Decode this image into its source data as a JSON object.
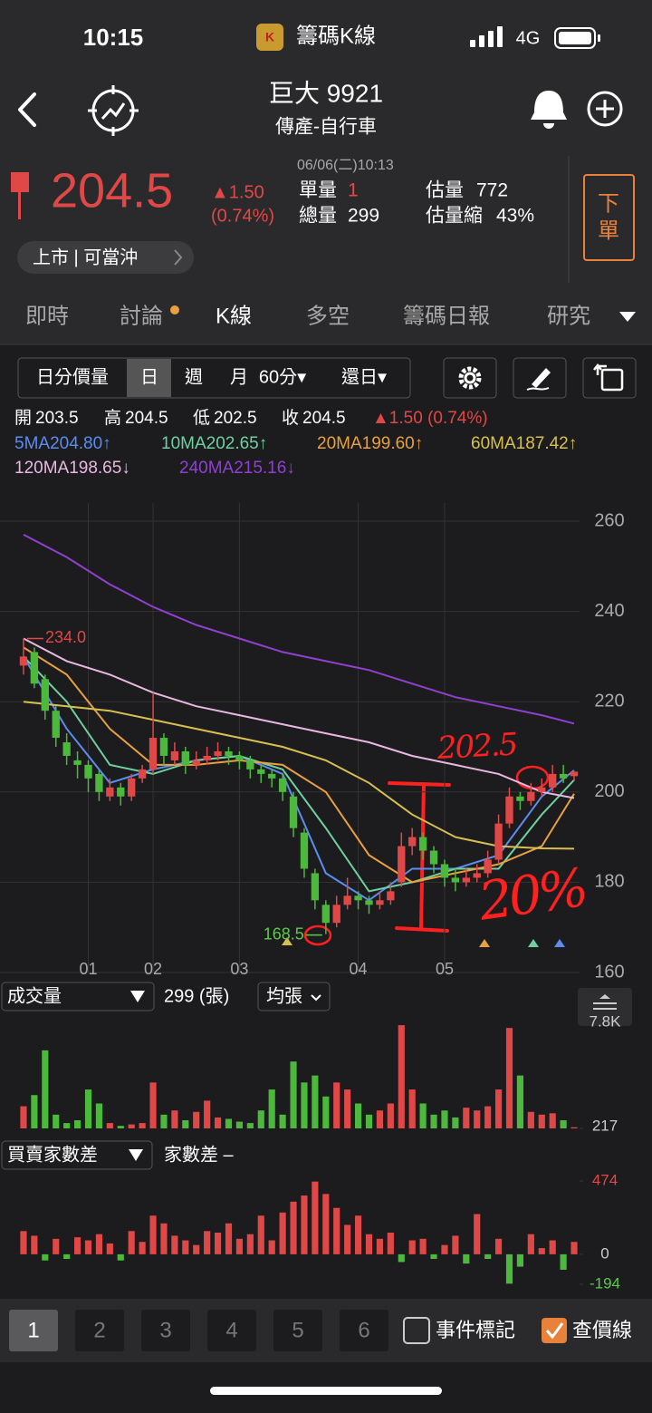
{
  "status_bar": {
    "time": "10:15",
    "app": "籌碼K線",
    "network": "4G"
  },
  "header": {
    "title": "巨大 9921",
    "subtitle": "傳產-自行車"
  },
  "quote": {
    "price": "204.5",
    "change": "▲1.50",
    "change_pct": "(0.74%)",
    "timestamp": "06/06(二)10:13",
    "fields": [
      {
        "label": "單量",
        "value": "1"
      },
      {
        "label": "總量",
        "value": "299"
      },
      {
        "label": "估量",
        "value": "772"
      },
      {
        "label": "估量縮",
        "value": "43%"
      }
    ],
    "order_button": [
      "下",
      "單"
    ],
    "tags": "上市 | 可當沖"
  },
  "tabs": [
    "即時",
    "討論",
    "K線",
    "多空",
    "籌碼日報",
    "研究"
  ],
  "toolbar": [
    "日分價量",
    "日",
    "週",
    "月",
    "60分▾",
    "還日▾"
  ],
  "ohlc": [
    {
      "label": "開",
      "value": "203.5"
    },
    {
      "label": "高",
      "value": "204.5"
    },
    {
      "label": "低",
      "value": "202.5"
    },
    {
      "label": "收",
      "value": "204.5"
    }
  ],
  "ohlc_change": "▲1.50 (0.74%)",
  "chart_data": [
    {
      "type": "candlestick",
      "ylim": [
        160,
        260
      ],
      "yticks": [
        160,
        180,
        200,
        220,
        240,
        260
      ],
      "xticks": [
        {
          "value": 6,
          "label": "01"
        },
        {
          "value": 12,
          "label": "02"
        },
        {
          "value": 20,
          "label": "03"
        },
        {
          "value": 31,
          "label": "04"
        },
        {
          "value": 39,
          "label": "05"
        }
      ],
      "grid": true,
      "up_color": "#e04848",
      "down_color": "#4cb83c",
      "candles": [
        [
          228,
          234,
          226,
          230
        ],
        [
          231,
          232,
          223,
          224
        ],
        [
          225,
          226,
          216,
          218
        ],
        [
          218,
          219,
          210,
          212
        ],
        [
          211,
          213,
          206,
          208
        ],
        [
          207,
          209,
          203,
          206
        ],
        [
          206,
          207,
          200,
          203
        ],
        [
          204,
          205,
          198,
          200
        ],
        [
          199,
          203,
          198,
          201
        ],
        [
          201,
          202,
          197,
          199
        ],
        [
          199,
          204,
          198,
          203
        ],
        [
          203,
          206,
          202,
          205
        ],
        [
          205,
          222,
          204,
          212
        ],
        [
          212,
          213,
          206,
          208
        ],
        [
          207,
          211,
          206,
          209
        ],
        [
          209,
          210,
          204,
          206
        ],
        [
          206,
          209,
          205,
          207
        ],
        [
          207,
          210,
          206,
          208
        ],
        [
          208,
          211,
          207,
          209
        ],
        [
          209,
          210,
          206,
          208
        ],
        [
          208,
          209,
          205,
          207
        ],
        [
          207,
          208,
          203,
          205
        ],
        [
          205,
          206,
          202,
          204
        ],
        [
          204,
          205,
          201,
          203
        ],
        [
          203,
          204,
          198,
          200
        ],
        [
          199,
          200,
          190,
          192
        ],
        [
          191,
          192,
          181,
          183
        ],
        [
          182,
          183,
          174,
          176
        ],
        [
          175,
          176,
          168.5,
          171
        ],
        [
          171,
          177,
          170,
          175
        ],
        [
          175,
          181,
          174,
          177
        ],
        [
          177,
          178,
          174,
          176
        ],
        [
          176,
          177,
          173,
          175
        ],
        [
          175,
          178,
          174,
          176
        ],
        [
          176,
          180,
          175,
          178
        ],
        [
          180,
          191,
          179,
          188
        ],
        [
          188,
          192,
          186,
          190
        ],
        [
          190,
          191,
          185,
          187
        ],
        [
          187,
          188,
          182,
          184
        ],
        [
          184,
          185,
          179,
          181
        ],
        [
          181,
          183,
          178,
          180
        ],
        [
          180,
          183,
          179,
          181
        ],
        [
          181,
          184,
          180,
          182
        ],
        [
          182,
          187,
          181,
          185
        ],
        [
          185,
          195,
          184,
          193
        ],
        [
          193,
          201,
          192,
          199
        ],
        [
          199,
          200,
          196,
          198
        ],
        [
          198,
          202,
          197,
          200
        ],
        [
          200,
          203,
          199,
          201
        ],
        [
          201,
          206,
          200,
          204
        ],
        [
          204,
          206,
          202,
          203
        ],
        [
          203.5,
          204.5,
          202.5,
          204.5
        ]
      ],
      "ma_x": [
        0,
        4,
        8,
        12,
        16,
        20,
        24,
        28,
        32,
        36,
        40,
        44,
        48,
        51
      ],
      "ma": [
        {
          "label": "5MA204.80↑",
          "color": "#5b8def",
          "values": [
            230,
            214,
            202,
            205,
            207,
            208,
            204,
            182,
            176,
            183,
            183,
            186,
            199,
            204.8
          ]
        },
        {
          "label": "10MA202.65↑",
          "color": "#6fd0a0",
          "values": [
            230,
            220,
            206,
            204,
            207,
            208,
            205,
            192,
            178,
            180,
            183,
            183,
            195,
            202.65
          ]
        },
        {
          "label": "20MA199.60↑",
          "color": "#e8a040",
          "values": [
            232,
            226,
            214,
            206,
            206,
            207,
            206,
            200,
            186,
            180,
            182,
            184,
            188,
            199.6
          ]
        },
        {
          "label": "60MA187.42↑",
          "color": "#d8c050",
          "values": [
            220,
            219,
            218,
            216,
            214,
            212,
            210,
            207,
            202,
            195,
            190,
            188,
            187.5,
            187.42
          ]
        },
        {
          "label": "120MA198.65↓",
          "color": "#e8b8e0",
          "values": [
            234,
            229,
            226,
            222,
            219,
            217,
            215,
            213,
            211,
            208,
            206,
            204,
            200,
            198.65
          ]
        },
        {
          "label": "240MA215.16↓",
          "color": "#9040d0",
          "values": [
            257,
            252,
            246,
            241,
            237,
            234,
            231,
            229,
            227,
            224,
            221,
            219,
            217,
            215.16
          ]
        }
      ],
      "high_label": "234.0",
      "low_label": "168.5",
      "notes": [
        "202.5",
        "20%"
      ]
    },
    {
      "type": "bar",
      "title": "成交量",
      "current": "299 (張)",
      "mode": "均張",
      "ylim": [
        217,
        7800
      ],
      "yticks": [
        {
          "value": 7800,
          "label": "7.8K"
        },
        217
      ],
      "values": [
        1800,
        2600,
        5800,
        1200,
        600,
        800,
        3000,
        2000,
        600,
        400,
        500,
        600,
        3500,
        1200,
        1500,
        800,
        1400,
        2200,
        1000,
        900,
        700,
        600,
        1500,
        3000,
        1200,
        5000,
        3500,
        4000,
        2500,
        3500,
        3000,
        2000,
        1200,
        1500,
        2000,
        7600,
        3000,
        2000,
        1200,
        1500,
        1000,
        1700,
        1500,
        1800,
        3000,
        7400,
        4000,
        1400,
        1200,
        1300,
        800,
        299
      ]
    },
    {
      "type": "bar",
      "title": "買賣家數差",
      "subtitle": "家數差 –",
      "ylim": [
        -194,
        474
      ],
      "yticks": [
        474,
        0,
        -194
      ],
      "values": [
        150,
        120,
        -40,
        100,
        -30,
        110,
        90,
        130,
        70,
        -40,
        150,
        80,
        250,
        200,
        120,
        90,
        60,
        150,
        140,
        200,
        100,
        130,
        250,
        90,
        270,
        340,
        380,
        470,
        390,
        300,
        190,
        250,
        130,
        100,
        140,
        -50,
        90,
        100,
        -30,
        60,
        120,
        -60,
        260,
        -30,
        100,
        -190,
        -80,
        130,
        40,
        90,
        -100,
        80
      ]
    }
  ],
  "bottom_bar": {
    "pages": [
      "1",
      "2",
      "3",
      "4",
      "5",
      "6"
    ],
    "checkboxes": [
      "事件標記",
      "查價線"
    ]
  }
}
